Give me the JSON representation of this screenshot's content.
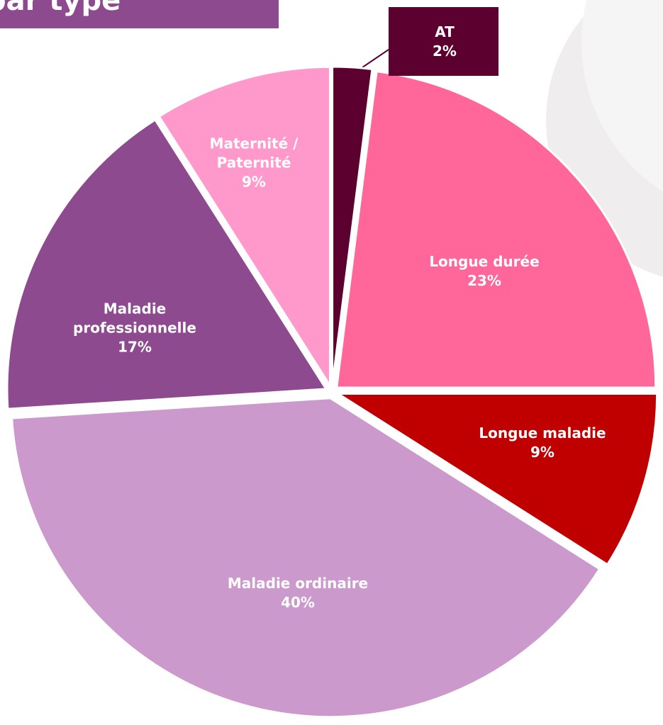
{
  "chart_data": {
    "type": "pie",
    "title": "par type",
    "categories": [
      "AT",
      "Longue durée",
      "Longue maladie",
      "Maladie ordinaire",
      "Maladie professionnelle",
      "Maternité / Paternité"
    ],
    "values": [
      2,
      23,
      9,
      40,
      17,
      9
    ],
    "value_labels": [
      "2%",
      "23%",
      "9%",
      "40%",
      "17%",
      "9%"
    ],
    "colors": [
      "#5c0030",
      "#ff6699",
      "#c00000",
      "#cc99cc",
      "#8e4a8e",
      "#ff99cc"
    ]
  }
}
